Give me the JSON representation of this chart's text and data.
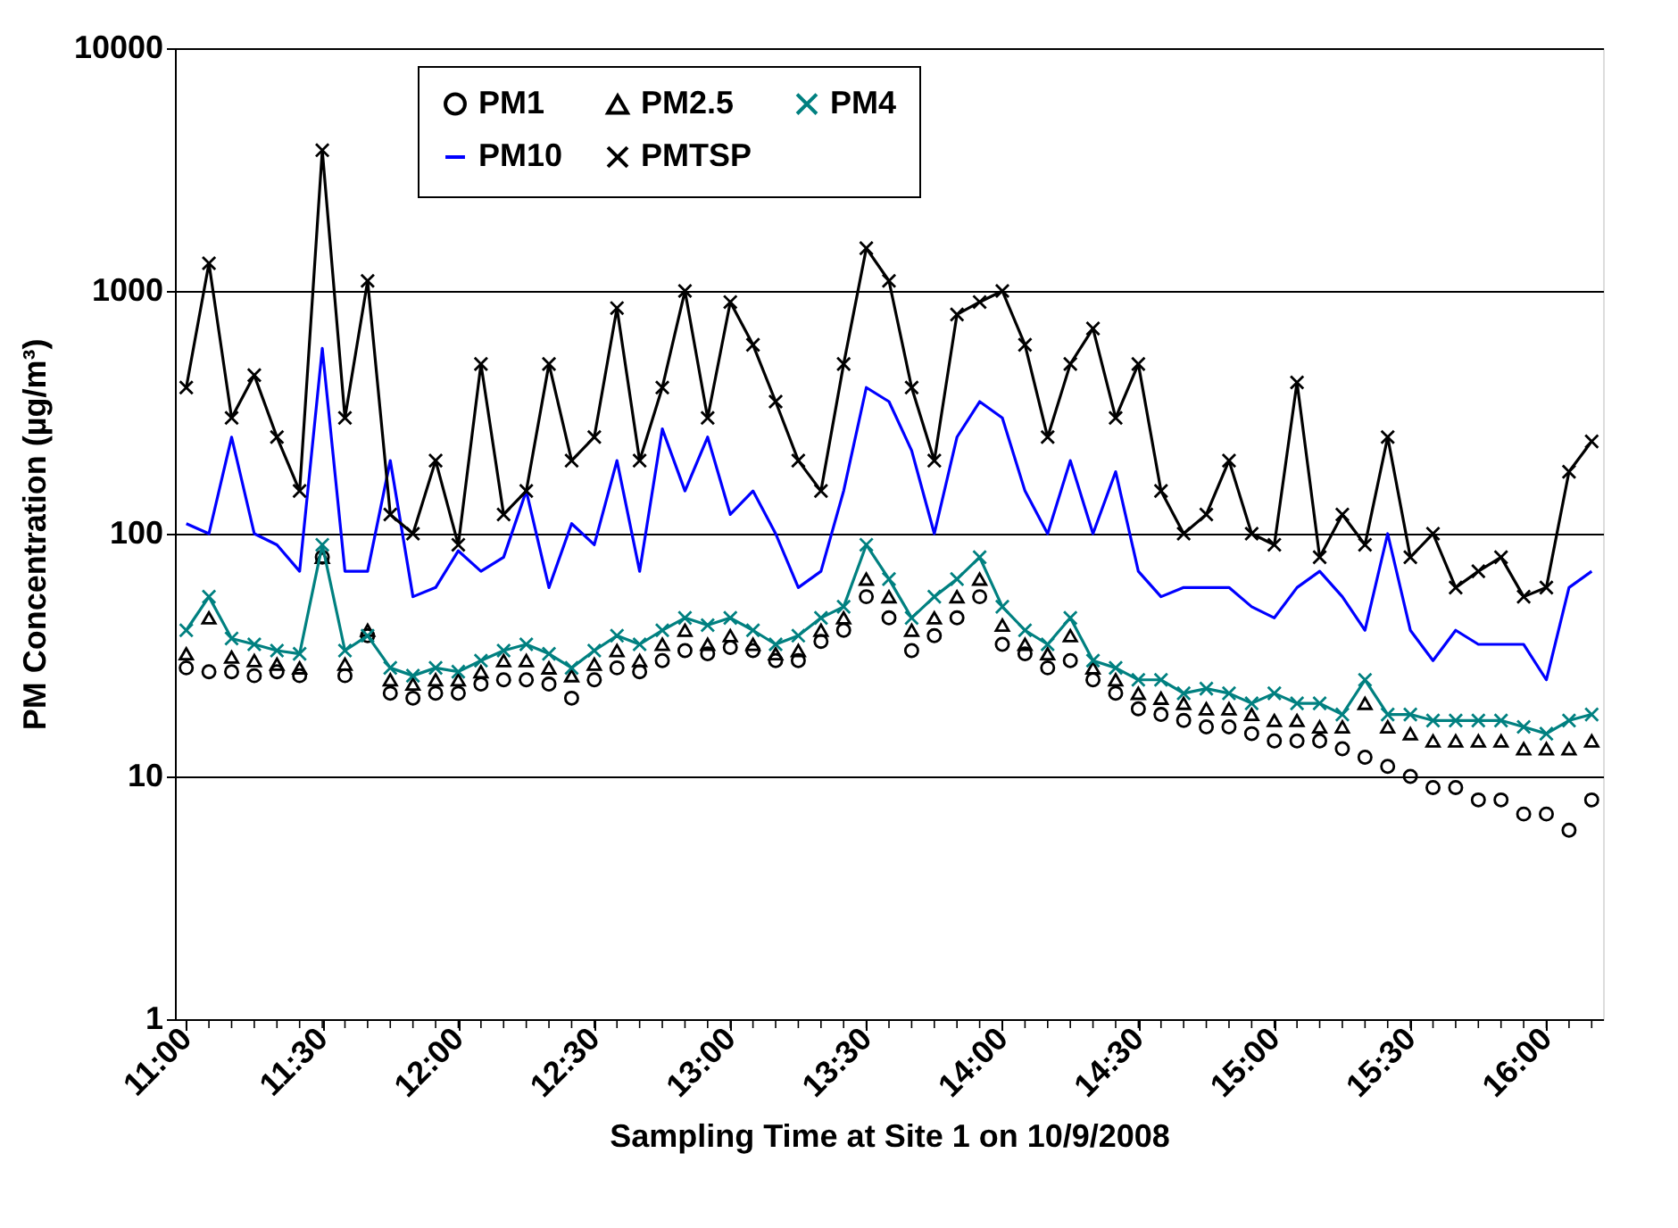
{
  "chart_data": {
    "type": "line",
    "xlabel": "Sampling Time at Site 1 on 10/9/2008",
    "ylabel": "PM Concentration (µg/m³)",
    "categories": [
      "11:00",
      null,
      null,
      null,
      null,
      null,
      "11:30",
      null,
      null,
      null,
      null,
      null,
      "12:00",
      null,
      null,
      null,
      null,
      null,
      "12:30",
      null,
      null,
      null,
      null,
      null,
      "13:00",
      null,
      null,
      null,
      null,
      null,
      "13:30",
      null,
      null,
      null,
      null,
      null,
      "14:00",
      null,
      null,
      null,
      null,
      null,
      "14:30",
      null,
      null,
      null,
      null,
      null,
      "15:00",
      null,
      null,
      null,
      null,
      null,
      "15:30",
      null,
      null,
      null,
      null,
      null,
      "16:00",
      null,
      null
    ],
    "series": [
      {
        "name": "PM1",
        "type": "scatter",
        "marker": "circle",
        "color": "#000000",
        "values": [
          28,
          27,
          27,
          26,
          27,
          26,
          80,
          26,
          38,
          22,
          21,
          22,
          22,
          24,
          25,
          25,
          24,
          21,
          25,
          28,
          27,
          30,
          33,
          32,
          34,
          33,
          30,
          30,
          36,
          40,
          55,
          45,
          33,
          38,
          45,
          55,
          35,
          32,
          28,
          30,
          25,
          22,
          19,
          18,
          17,
          16,
          16,
          15,
          14,
          14,
          14,
          13,
          12,
          11,
          10,
          9,
          9,
          8,
          8,
          7,
          7,
          6,
          8
        ]
      },
      {
        "name": "PM2.5",
        "type": "scatter",
        "marker": "triangle",
        "color": "#000000",
        "values": [
          32,
          45,
          31,
          30,
          29,
          28,
          80,
          29,
          40,
          25,
          24,
          25,
          25,
          27,
          30,
          30,
          28,
          26,
          29,
          33,
          30,
          35,
          40,
          35,
          38,
          35,
          32,
          33,
          40,
          45,
          65,
          55,
          40,
          45,
          55,
          65,
          42,
          35,
          32,
          38,
          28,
          25,
          22,
          21,
          20,
          19,
          19,
          18,
          17,
          17,
          16,
          16,
          20,
          16,
          15,
          14,
          14,
          14,
          14,
          13,
          13,
          13,
          14
        ]
      },
      {
        "name": "PM4",
        "marker": "cross",
        "color": "#008080",
        "values": [
          40,
          55,
          37,
          35,
          33,
          32,
          90,
          33,
          38,
          28,
          26,
          28,
          27,
          30,
          33,
          35,
          32,
          28,
          33,
          38,
          35,
          40,
          45,
          42,
          45,
          40,
          35,
          38,
          45,
          50,
          90,
          65,
          45,
          55,
          65,
          80,
          50,
          40,
          35,
          45,
          30,
          28,
          25,
          25,
          22,
          23,
          22,
          20,
          22,
          20,
          20,
          18,
          25,
          18,
          18,
          17,
          17,
          17,
          17,
          16,
          15,
          17,
          18
        ]
      },
      {
        "name": "PM10",
        "marker": "none",
        "color": "#0000ff",
        "values": [
          110,
          100,
          250,
          100,
          90,
          70,
          580,
          70,
          70,
          200,
          55,
          60,
          85,
          70,
          80,
          150,
          60,
          110,
          90,
          200,
          70,
          270,
          150,
          250,
          120,
          150,
          100,
          60,
          70,
          150,
          400,
          350,
          220,
          100,
          250,
          350,
          300,
          150,
          100,
          200,
          100,
          180,
          70,
          55,
          60,
          60,
          60,
          50,
          45,
          60,
          70,
          55,
          40,
          100,
          40,
          30,
          40,
          35,
          35,
          35,
          25,
          60,
          70
        ]
      },
      {
        "name": "PMTSP",
        "marker": "cross",
        "color": "#000000",
        "values": [
          400,
          1300,
          300,
          450,
          250,
          150,
          3800,
          300,
          1100,
          120,
          100,
          200,
          90,
          500,
          120,
          150,
          500,
          200,
          250,
          850,
          200,
          400,
          1000,
          300,
          900,
          600,
          350,
          200,
          150,
          500,
          1500,
          1100,
          400,
          200,
          800,
          900,
          1000,
          600,
          250,
          500,
          700,
          300,
          500,
          150,
          100,
          120,
          200,
          100,
          90,
          420,
          80,
          120,
          90,
          250,
          80,
          100,
          60,
          70,
          80,
          55,
          60,
          180,
          240
        ]
      }
    ],
    "log": "y",
    "ylim": [
      1,
      10000
    ],
    "yticks": [
      1,
      10,
      100,
      1000,
      10000
    ],
    "grid": "y",
    "legend": "top"
  }
}
